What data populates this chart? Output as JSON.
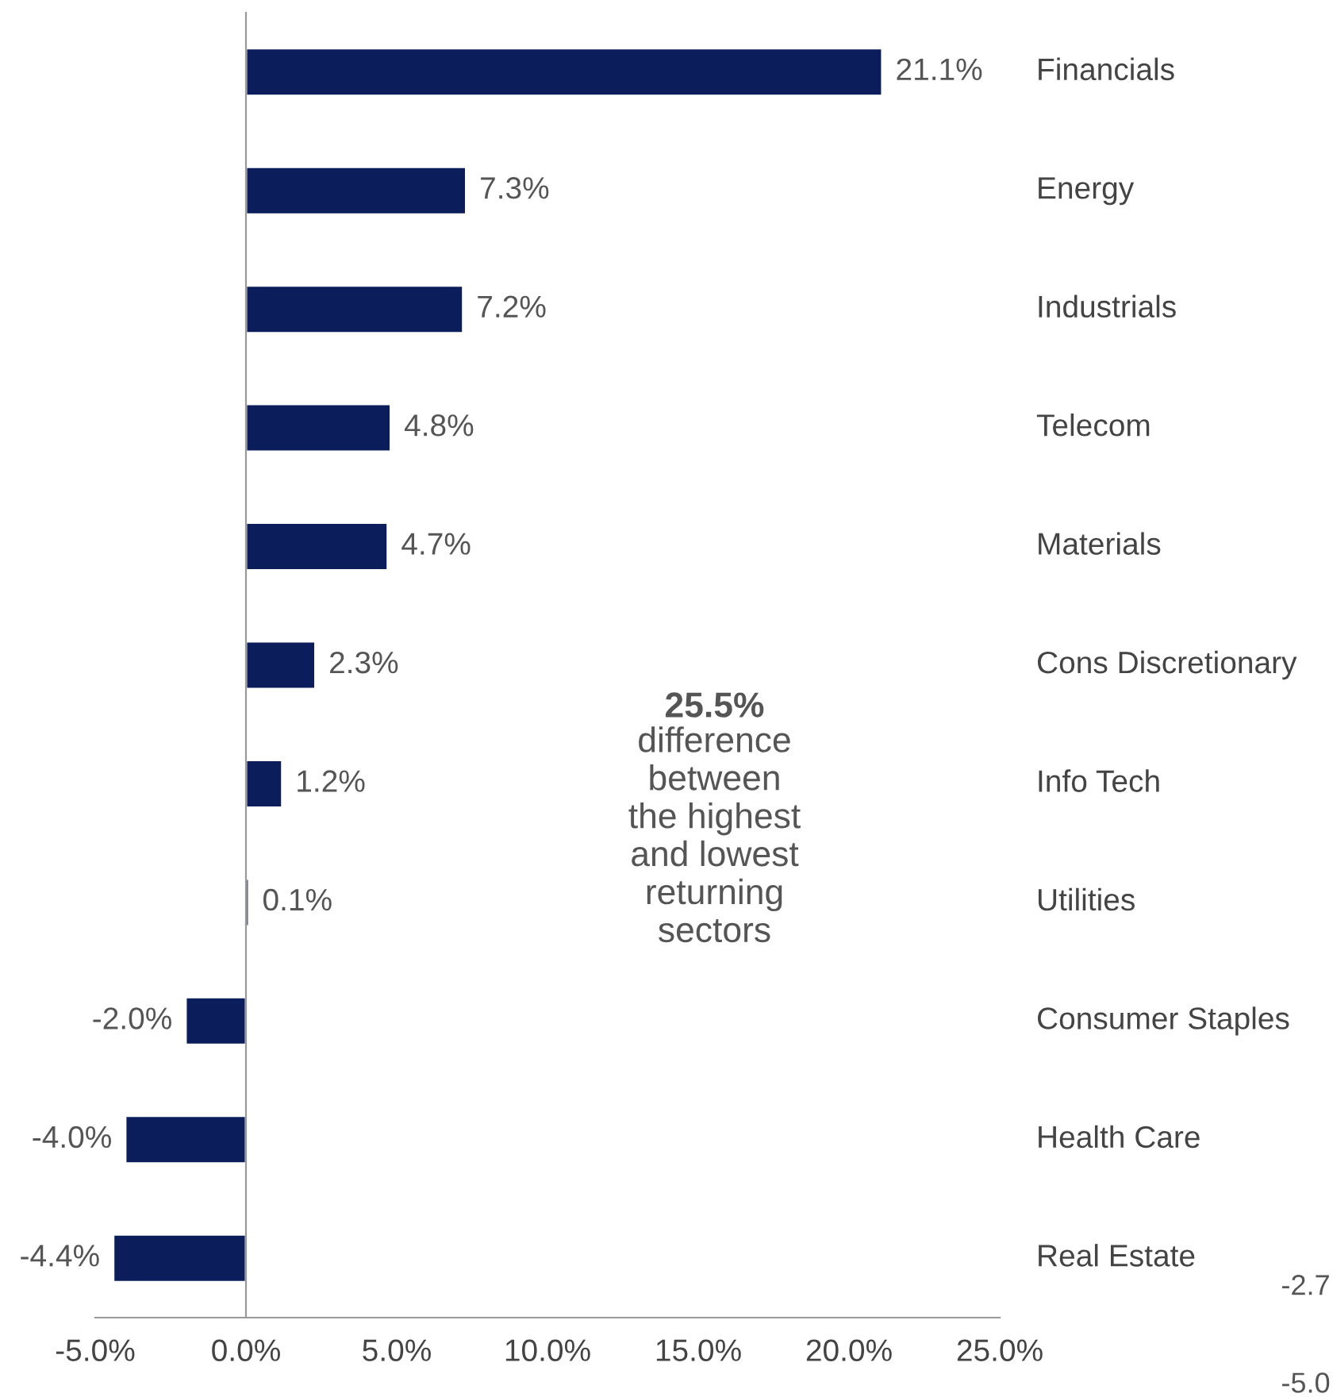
{
  "chart_data": {
    "type": "bar",
    "orientation": "horizontal",
    "categories": [
      "Financials",
      "Energy",
      "Industrials",
      "Telecom",
      "Materials",
      "Cons Discretionary",
      "Info Tech",
      "Utilities",
      "Consumer Staples",
      "Health Care",
      "Real Estate"
    ],
    "values": [
      21.1,
      7.3,
      7.2,
      4.8,
      4.7,
      2.3,
      1.2,
      0.1,
      -2.0,
      -4.0,
      -4.4
    ],
    "color": "#0b1e5b",
    "value_labels": [
      "21.1%",
      "7.3%",
      "7.2%",
      "4.8%",
      "4.7%",
      "2.3%",
      "1.2%",
      "0.1%",
      "-2.0%",
      "-4.0%",
      "-4.4%"
    ],
    "xlim": [
      -5,
      25
    ],
    "xticks": [
      {
        "value": -5,
        "label": "-5.0%"
      },
      {
        "value": 0,
        "label": "0.0%"
      },
      {
        "value": 5,
        "label": "5.0%"
      },
      {
        "value": 10,
        "label": "10.0%"
      },
      {
        "value": 15,
        "label": "15.0%"
      },
      {
        "value": 20,
        "label": "20.0%"
      },
      {
        "value": 25,
        "label": "25.0%"
      }
    ],
    "annotations": [
      "25.5%",
      "difference\nbetween\nthe highest\nand lowest\nreturning\nsectors",
      "-2.7",
      "-5.0"
    ],
    "legend": false
  }
}
